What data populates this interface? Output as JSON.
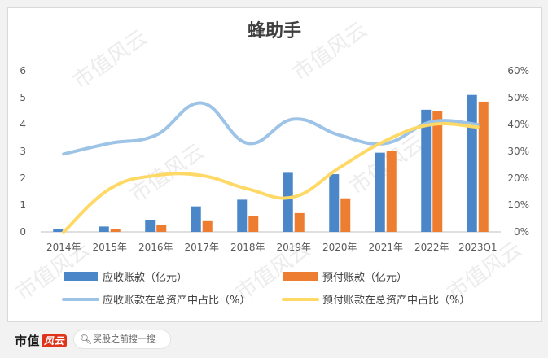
{
  "chart_data": {
    "type": "bar",
    "title": "蜂助手",
    "categories": [
      "2014年",
      "2015年",
      "2016年",
      "2017年",
      "2018年",
      "2019年",
      "2020年",
      "2021年",
      "2022年",
      "2023Q1"
    ],
    "left_axis": {
      "ticks": [
        "0",
        "1",
        "2",
        "3",
        "4",
        "5",
        "6"
      ],
      "ylim": [
        0,
        6
      ]
    },
    "right_axis": {
      "ticks": [
        "0%",
        "10%",
        "20%",
        "30%",
        "40%",
        "50%",
        "60%"
      ],
      "ylim": [
        0,
        60
      ]
    },
    "grid": false,
    "legend_position": "bottom",
    "series": [
      {
        "name": "应收账款（亿元）",
        "type": "bar",
        "axis": "left",
        "color": "#4a86c8",
        "values": [
          0.1,
          0.2,
          0.45,
          0.95,
          1.2,
          2.2,
          2.15,
          2.95,
          4.55,
          5.1
        ]
      },
      {
        "name": "预付账款（亿元）",
        "type": "bar",
        "axis": "left",
        "color": "#ed7d31",
        "values": [
          0.0,
          0.12,
          0.25,
          0.4,
          0.6,
          0.7,
          1.25,
          3.0,
          4.5,
          4.85
        ]
      },
      {
        "name": "应收账款在总资产中占比（%）",
        "type": "line",
        "axis": "right",
        "color": "#9dc3e6",
        "values": [
          29,
          33,
          36,
          48,
          33,
          42,
          36,
          33,
          41,
          40
        ]
      },
      {
        "name": "预付账款在总资产中占比（%）",
        "type": "line",
        "axis": "right",
        "color": "#ffd966",
        "values": [
          0,
          16,
          21,
          21,
          16,
          13,
          24,
          34,
          40,
          39
        ]
      }
    ]
  },
  "watermark": "市值风云",
  "footer": {
    "brand": "市值",
    "brand_mark": "风云",
    "search_placeholder": "买股之前搜一搜",
    "search_icon": "search-icon"
  }
}
